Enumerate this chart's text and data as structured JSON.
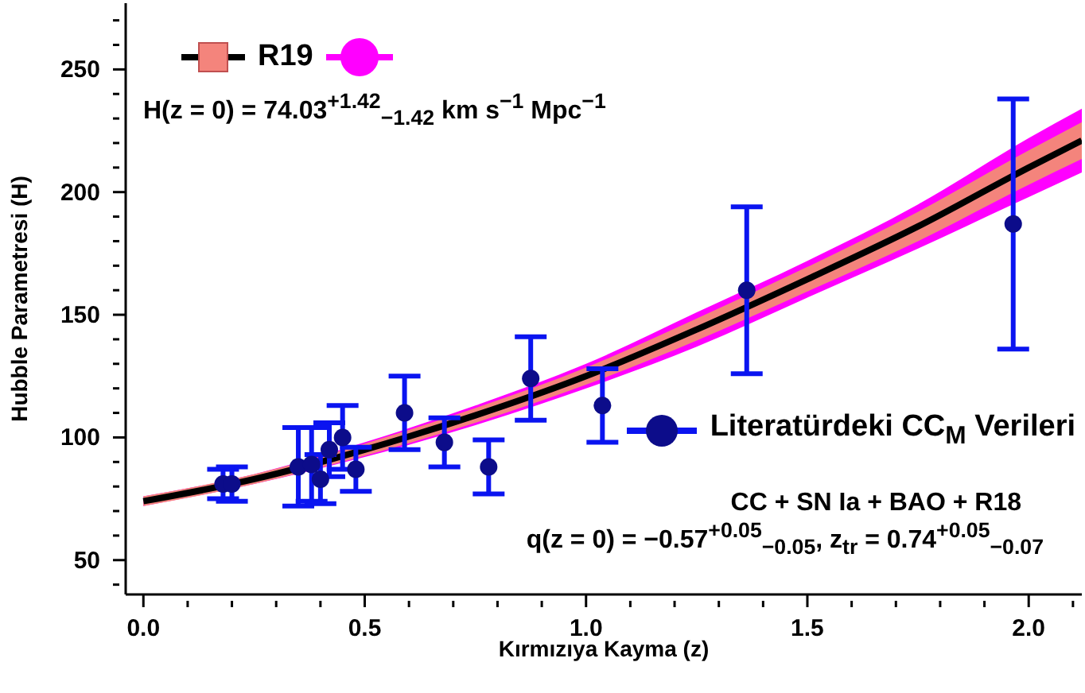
{
  "chart_data": {
    "type": "line",
    "xlabel": "Kırmızıya Kayma (z)",
    "ylabel": "Hubble Parametresi (H)",
    "xlim": [
      -0.04,
      2.12
    ],
    "ylim": [
      36,
      277
    ],
    "xticks": [
      {
        "value": 0,
        "label": "0.0"
      },
      {
        "value": 0.1,
        "label": null
      },
      {
        "value": 0.2,
        "label": null
      },
      {
        "value": 0.3,
        "label": null
      },
      {
        "value": 0.4,
        "label": null
      },
      {
        "value": 0.5,
        "label": "0.5"
      },
      {
        "value": 0.6,
        "label": null
      },
      {
        "value": 0.7,
        "label": null
      },
      {
        "value": 0.8,
        "label": null
      },
      {
        "value": 0.9,
        "label": null
      },
      {
        "value": 1,
        "label": "1.0"
      },
      {
        "value": 1.1,
        "label": null
      },
      {
        "value": 1.2,
        "label": null
      },
      {
        "value": 1.3,
        "label": null
      },
      {
        "value": 1.4,
        "label": null
      },
      {
        "value": 1.5,
        "label": "1.5"
      },
      {
        "value": 1.6,
        "label": null
      },
      {
        "value": 1.7,
        "label": null
      },
      {
        "value": 1.8,
        "label": null
      },
      {
        "value": 1.9,
        "label": null
      },
      {
        "value": 2,
        "label": "2.0"
      },
      {
        "value": 2.1,
        "label": null
      }
    ],
    "yticks": [
      {
        "value": 40,
        "label": null
      },
      50,
      {
        "value": 60,
        "label": null
      },
      {
        "value": 70,
        "label": null
      },
      {
        "value": 80,
        "label": null
      },
      {
        "value": 90,
        "label": null
      },
      100,
      {
        "value": 110,
        "label": null
      },
      {
        "value": 120,
        "label": null
      },
      {
        "value": 130,
        "label": null
      },
      {
        "value": 140,
        "label": null
      },
      150,
      {
        "value": 160,
        "label": null
      },
      {
        "value": 170,
        "label": null
      },
      {
        "value": 180,
        "label": null
      },
      {
        "value": 190,
        "label": null
      },
      200,
      {
        "value": 210,
        "label": null
      },
      {
        "value": 220,
        "label": null
      },
      {
        "value": 230,
        "label": null
      },
      {
        "value": 240,
        "label": null
      },
      250,
      {
        "value": 260,
        "label": null
      },
      {
        "value": 270,
        "label": null
      }
    ],
    "legend": "right",
    "series": [
      {
        "color": "#ff00ff",
        "x": [
          0,
          0.25,
          0.5,
          0.75,
          1,
          1.25,
          1.5,
          1.75,
          2,
          2.12
        ],
        "values": [
          null,
          null,
          null,
          null,
          null,
          null,
          null,
          null,
          null,
          null
        ],
        "lower": [
          72,
          81,
          92,
          105,
          120,
          137,
          157,
          177,
          198,
          208
        ],
        "upper": [
          76,
          85,
          98,
          113,
          130,
          151,
          172,
          195,
          222,
          234
        ]
      },
      {
        "color": "#f4847c",
        "x": [
          0,
          0.25,
          0.5,
          0.75,
          1,
          1.25,
          1.5,
          1.75,
          2,
          2.12
        ],
        "values": [
          null,
          null,
          null,
          null,
          null,
          null,
          null,
          null,
          null,
          null
        ],
        "lower": [
          72,
          81,
          92.5,
          106,
          121.5,
          139.5,
          159.5,
          180,
          203,
          213.5
        ],
        "upper": [
          76,
          85,
          97.5,
          112,
          128.5,
          148.5,
          169.5,
          192,
          217,
          228.5
        ]
      },
      {
        "name": "R19",
        "color": "#000000",
        "x": [
          0,
          0.25,
          0.5,
          0.75,
          1,
          1.25,
          1.5,
          1.75,
          2,
          2.12
        ],
        "values": [
          74,
          83,
          95,
          109,
          125,
          144,
          164.5,
          186,
          210,
          221
        ]
      },
      {
        "name": "Literatürdeki CC$_{M}$ Verileri",
        "type": "scatter",
        "color": "#0c0c8a",
        "marker": "circle",
        "x": [
          0.18,
          0.2,
          0.35,
          0.38,
          0.4,
          0.42,
          0.45,
          0.48,
          0.59,
          0.68,
          0.78,
          0.875,
          1.037,
          1.363,
          1.965
        ],
        "values": [
          81,
          81,
          88,
          89,
          83,
          95,
          100,
          87,
          110,
          98,
          88,
          124,
          113,
          160,
          187
        ],
        "errors": [
          6,
          7,
          16,
          15,
          10,
          11,
          13,
          9,
          15,
          10,
          11,
          17,
          15,
          34,
          51
        ]
      }
    ],
    "annotations": [
      "H(z = 0) = 74.03$^{+1.42}$$_{−1.42}$ km s$^{−1}$ Mpc$^{−1}$",
      "CC + SN Ia + BAO + R18",
      "q(z = 0) = −0.57$^{+0.05}$$_{−0.05}$,  z$_{tr}$ = 0.74$^{+0.05}$$_{−0.07}$"
    ]
  }
}
